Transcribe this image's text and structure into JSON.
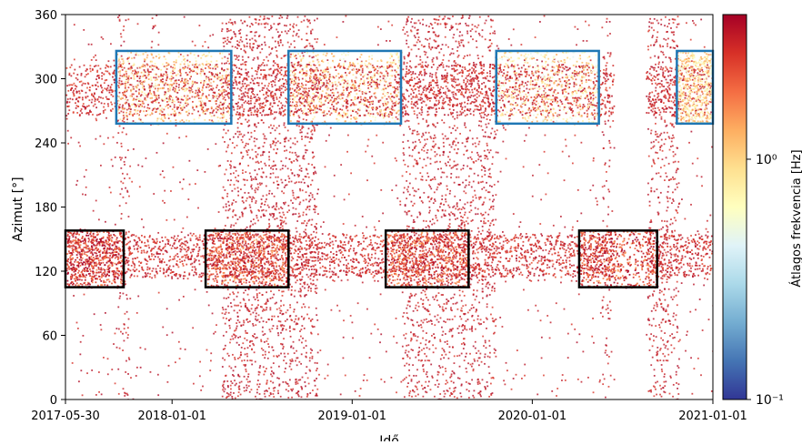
{
  "chart_data": {
    "type": "heatmap",
    "title": "",
    "xlabel": "Idő",
    "ylabel": "Azimut [°]",
    "colorbar_label": "Átlagos frekvencia [Hz]",
    "x_start": "2017-05-30",
    "x_end": "2021-01-01",
    "x_ticks": [
      "2017-05-30",
      "2018-01-01",
      "2019-01-01",
      "2020-01-01",
      "2021-01-01"
    ],
    "ylim": [
      0,
      360
    ],
    "y_ticks": [
      0,
      60,
      120,
      180,
      240,
      300,
      360
    ],
    "colorbar": {
      "scale": "log",
      "min": 0.1,
      "max": 4,
      "ticks": [
        {
          "value": 1,
          "label": "10⁰"
        },
        {
          "value": 0.1,
          "label": "10⁻¹"
        }
      ],
      "colormap": [
        "#313695",
        "#4575b4",
        "#74add1",
        "#abd9e9",
        "#e0f3f8",
        "#ffffbf",
        "#fee090",
        "#fdae61",
        "#f46d43",
        "#d73027",
        "#a50026"
      ]
    },
    "color_map_name": "RdYlBu_r",
    "density_bands": [
      {
        "start": "2017-09-10",
        "end": "2017-10-05",
        "weight": 0.7
      },
      {
        "start": "2018-04-10",
        "end": "2018-10-20",
        "weight": 0.95
      },
      {
        "start": "2019-04-10",
        "end": "2019-10-15",
        "weight": 0.9
      },
      {
        "start": "2020-05-20",
        "end": "2020-06-05",
        "weight": 0.6
      },
      {
        "start": "2020-08-20",
        "end": "2020-10-20",
        "weight": 0.85
      }
    ],
    "data_gap": {
      "start": "2020-06-10",
      "end": "2020-08-18"
    },
    "azimuth_bands": [
      {
        "center": 290,
        "width": 30,
        "weight": 0.8
      },
      {
        "center": 135,
        "width": 25,
        "weight": 0.75
      }
    ],
    "highlight_boxes": [
      {
        "start": "2017-05-30",
        "end": "2017-09-25",
        "ymin": 105,
        "ymax": 158,
        "color": "#000000",
        "level_hz": 2.8
      },
      {
        "start": "2018-03-10",
        "end": "2018-08-25",
        "ymin": 105,
        "ymax": 158,
        "color": "#000000",
        "level_hz": 2.3
      },
      {
        "start": "2019-03-10",
        "end": "2019-08-25",
        "ymin": 105,
        "ymax": 158,
        "color": "#000000",
        "level_hz": 2.3
      },
      {
        "start": "2020-04-05",
        "end": "2020-09-10",
        "ymin": 105,
        "ymax": 158,
        "color": "#000000",
        "level_hz": 2.5
      },
      {
        "start": "2017-09-10",
        "end": "2018-05-01",
        "ymin": 258,
        "ymax": 326,
        "color": "#1f77b4",
        "level_hz": 0.9
      },
      {
        "start": "2018-08-25",
        "end": "2019-04-10",
        "ymin": 258,
        "ymax": 326,
        "color": "#1f77b4",
        "level_hz": 0.9
      },
      {
        "start": "2019-10-20",
        "end": "2020-05-15",
        "ymin": 258,
        "ymax": 326,
        "color": "#1f77b4",
        "level_hz": 0.8
      },
      {
        "start": "2020-10-20",
        "end": "2021-01-01",
        "ymin": 258,
        "ymax": 326,
        "color": "#1f77b4",
        "level_hz": 0.9
      }
    ],
    "grid": false,
    "legend": "colorbar-right"
  }
}
